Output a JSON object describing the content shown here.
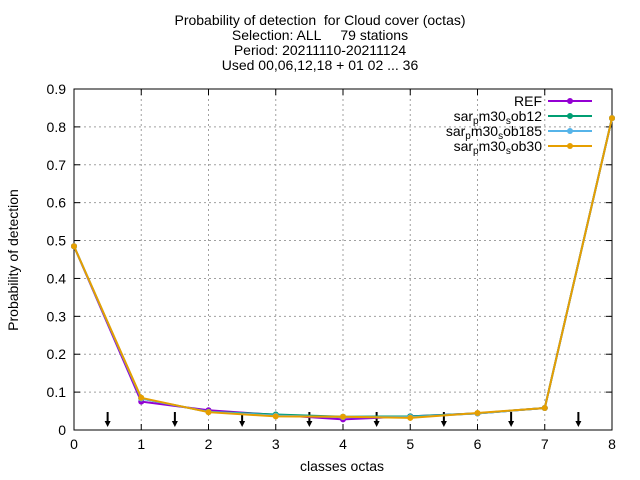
{
  "chart_data": {
    "type": "line",
    "title_lines": [
      "Probability of detection  for Cloud cover (octas)",
      "Selection: ALL     79 stations",
      "Period: 20211110-20211124",
      "Used 00,06,12,18 + 01 02 ... 36"
    ],
    "xlabel": "classes octas",
    "ylabel": "Probability of detection",
    "xlim": [
      0,
      8
    ],
    "ylim": [
      0,
      0.9
    ],
    "x_ticks": [
      "0",
      "1",
      "2",
      "3",
      "4",
      "5",
      "6",
      "7",
      "8"
    ],
    "y_ticks": [
      "0",
      "0.1",
      "0.2",
      "0.3",
      "0.4",
      "0.5",
      "0.6",
      "0.7",
      "0.8",
      "0.9"
    ],
    "grid": true,
    "legend_position": "top-right",
    "x": [
      0,
      1,
      2,
      3,
      4,
      5,
      6,
      7,
      8
    ],
    "series": [
      {
        "name": "REF",
        "name_parts": [
          [
            "REF",
            ""
          ]
        ],
        "color": "#9400d3",
        "values": [
          0.485,
          0.075,
          0.052,
          0.04,
          0.028,
          0.036,
          0.044,
          0.058,
          0.823
        ]
      },
      {
        "name": "sar_pm30_sob12",
        "name_parts": [
          [
            "sar",
            ""
          ],
          [
            "p",
            "sub"
          ],
          [
            "m30",
            ""
          ],
          [
            "s",
            "sub"
          ],
          [
            "ob12",
            ""
          ]
        ],
        "color": "#009e73",
        "values": [
          0.485,
          0.083,
          0.048,
          0.041,
          0.035,
          0.036,
          0.044,
          0.058,
          0.823
        ]
      },
      {
        "name": "sar_pm30_sob185",
        "name_parts": [
          [
            "sar",
            ""
          ],
          [
            "p",
            "sub"
          ],
          [
            "m30",
            ""
          ],
          [
            "s",
            "sub"
          ],
          [
            "ob185",
            ""
          ]
        ],
        "color": "#56b4e9",
        "values": [
          0.485,
          0.083,
          0.048,
          0.038,
          0.034,
          0.034,
          0.044,
          0.058,
          0.823
        ]
      },
      {
        "name": "sar_pm30_sob30",
        "name_parts": [
          [
            "sar",
            ""
          ],
          [
            "p",
            "sub"
          ],
          [
            "m30",
            ""
          ],
          [
            "s",
            "sub"
          ],
          [
            "ob30",
            ""
          ]
        ],
        "color": "#e69f00",
        "values": [
          0.485,
          0.085,
          0.047,
          0.036,
          0.035,
          0.032,
          0.045,
          0.058,
          0.823
        ]
      }
    ],
    "markers_x": [
      0.5,
      1.5,
      2.5,
      3.5,
      4.5,
      5.5,
      6.5,
      7.5
    ]
  }
}
